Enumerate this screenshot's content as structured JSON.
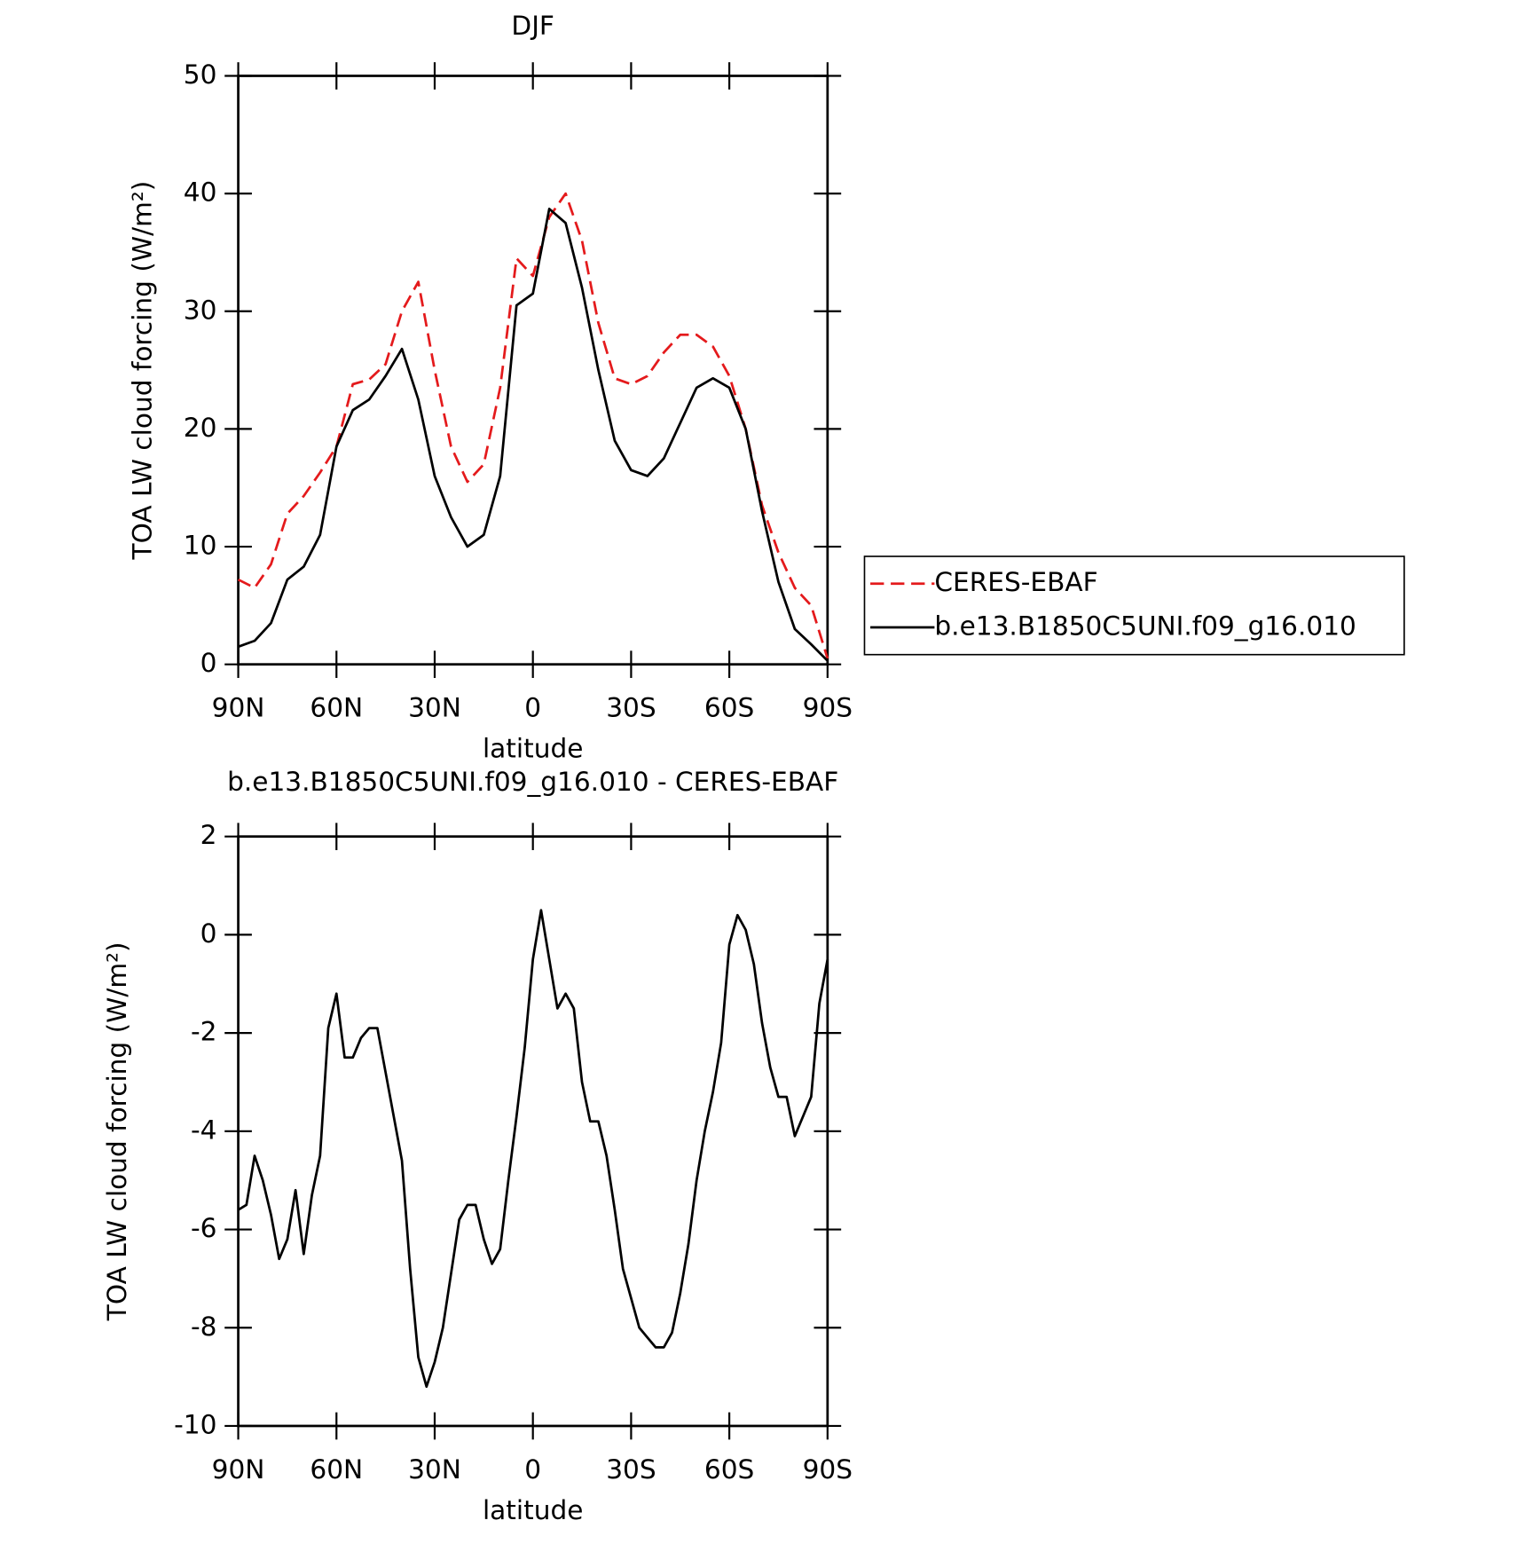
{
  "chart_data": [
    {
      "type": "line",
      "title": "DJF",
      "xlabel": "latitude",
      "ylabel": "TOA LW cloud forcing (W/m²)",
      "x": [
        90,
        85,
        80,
        75,
        70,
        65,
        60,
        55,
        50,
        45,
        40,
        35,
        30,
        25,
        20,
        15,
        10,
        5,
        0,
        -5,
        -10,
        -15,
        -20,
        -25,
        -30,
        -35,
        -40,
        -45,
        -50,
        -55,
        -60,
        -65,
        -70,
        -75,
        -80,
        -85,
        -90
      ],
      "xlim": [
        90,
        -90
      ],
      "xticks": [
        {
          "value": 90,
          "label": "90N"
        },
        {
          "value": 60,
          "label": "60N"
        },
        {
          "value": 30,
          "label": "30N"
        },
        0,
        {
          "value": -30,
          "label": "30S"
        },
        {
          "value": -60,
          "label": "60S"
        },
        {
          "value": -90,
          "label": "90S"
        }
      ],
      "ylim": [
        0,
        50
      ],
      "yticks": [
        0,
        10,
        20,
        30,
        40,
        50
      ],
      "legend": "right",
      "series": [
        {
          "name": "CERES-EBAF",
          "color": "#e41a1c",
          "dashed": true,
          "values": [
            7.2,
            6.5,
            8.5,
            12.8,
            14.3,
            16.3,
            18.5,
            23.8,
            24.2,
            25.5,
            30,
            32.5,
            25,
            18.5,
            15.5,
            17,
            23.5,
            34.5,
            33,
            38,
            40,
            36,
            29,
            24.3,
            23.8,
            24.5,
            26.5,
            28,
            28,
            27,
            24.5,
            20,
            13.5,
            9.5,
            6.5,
            5,
            0.5
          ]
        },
        {
          "name": "b.e13.B1850C5UNI.f09_g16.010",
          "color": "#000000",
          "dashed": false,
          "values": [
            1.5,
            2,
            3.5,
            7.2,
            8.3,
            11,
            18.5,
            21.6,
            22.5,
            24.5,
            26.8,
            22.5,
            16,
            12.5,
            10,
            11,
            16,
            30.5,
            31.5,
            38.7,
            37.5,
            32,
            25,
            19,
            16.5,
            16,
            17.5,
            20.5,
            23.5,
            24.3,
            23.5,
            20,
            13,
            7,
            3,
            1.7,
            0.3
          ]
        }
      ]
    },
    {
      "type": "line",
      "title": "b.e13.B1850C5UNI.f09_g16.010 - CERES-EBAF",
      "xlabel": "latitude",
      "ylabel": "TOA LW cloud forcing (W/m²)",
      "x": [
        90,
        87.5,
        85,
        82.5,
        80,
        77.5,
        75,
        72.5,
        70,
        67.5,
        65,
        62.5,
        60,
        57.5,
        55,
        52.5,
        50,
        47.5,
        45,
        42.5,
        40,
        37.5,
        35,
        32.5,
        30,
        27.5,
        25,
        22.5,
        20,
        17.5,
        15,
        12.5,
        10,
        7.5,
        5,
        2.5,
        0,
        -2.5,
        -5,
        -7.5,
        -10,
        -12.5,
        -15,
        -17.5,
        -20,
        -22.5,
        -25,
        -27.5,
        -30,
        -32.5,
        -35,
        -37.5,
        -40,
        -42.5,
        -45,
        -47.5,
        -50,
        -52.5,
        -55,
        -57.5,
        -60,
        -62.5,
        -65,
        -67.5,
        -70,
        -72.5,
        -75,
        -77.5,
        -80,
        -82.5,
        -85,
        -87.5,
        -90
      ],
      "xlim": [
        90,
        -90
      ],
      "xticks": [
        {
          "value": 90,
          "label": "90N"
        },
        {
          "value": 60,
          "label": "60N"
        },
        {
          "value": 30,
          "label": "30N"
        },
        0,
        {
          "value": -30,
          "label": "30S"
        },
        {
          "value": -60,
          "label": "60S"
        },
        {
          "value": -90,
          "label": "90S"
        }
      ],
      "ylim": [
        -10,
        2
      ],
      "yticks": [
        -10,
        -8,
        -6,
        -4,
        -2,
        0,
        2
      ],
      "series": [
        {
          "color": "#000000",
          "dashed": false,
          "values": [
            -5.6,
            -5.5,
            -4.5,
            -5,
            -5.7,
            -6.6,
            -6.2,
            -5.2,
            -6.5,
            -5.3,
            -4.5,
            -1.9,
            -1.2,
            -2.5,
            -2.5,
            -2.1,
            -1.9,
            -1.9,
            -2.8,
            -3.7,
            -4.6,
            -6.8,
            -8.6,
            -9.2,
            -8.7,
            -8,
            -6.9,
            -5.8,
            -5.5,
            -5.5,
            -6.2,
            -6.7,
            -6.4,
            -5,
            -3.7,
            -2.3,
            -0.5,
            0.5,
            -0.5,
            -1.5,
            -1.2,
            -1.5,
            -3,
            -3.8,
            -3.8,
            -4.5,
            -5.6,
            -6.8,
            -7.4,
            -8,
            -8.2,
            -8.4,
            -8.4,
            -8.1,
            -7.3,
            -6.3,
            -5,
            -4,
            -3.2,
            -2.2,
            -0.2,
            0.4,
            0.1,
            -0.6,
            -1.8,
            -2.7,
            -3.3,
            -3.3,
            -4.1,
            -3.7,
            -3.3,
            -1.4,
            -0.5
          ]
        }
      ]
    }
  ]
}
